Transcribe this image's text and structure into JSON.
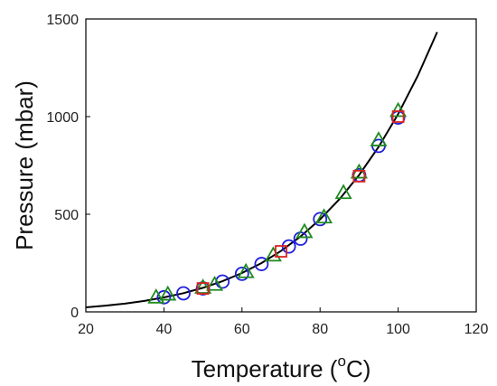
{
  "chart_data": {
    "type": "scatter",
    "title": "",
    "xlabel": "Temperature (",
    "xlabel_sup": "o",
    "xlabel_unit": "C)",
    "ylabel": "Pressure (mbar)",
    "xlim": [
      20,
      120
    ],
    "ylim": [
      0,
      1500
    ],
    "x_ticks": [
      20,
      40,
      60,
      80,
      100,
      120
    ],
    "y_ticks": [
      0,
      500,
      1000,
      1500
    ],
    "grid": false,
    "legend": "none",
    "curve": {
      "x": [
        20,
        25,
        30,
        35,
        40,
        45,
        50,
        55,
        60,
        65,
        70,
        75,
        80,
        85,
        90,
        95,
        100,
        105,
        110
      ],
      "y": [
        23,
        32,
        42,
        56,
        74,
        96,
        123,
        157,
        199,
        250,
        312,
        386,
        474,
        578,
        701,
        845,
        1013,
        1208,
        1433
      ],
      "color": "#000000"
    },
    "series": [
      {
        "marker": "circle",
        "color": "#1f1fdd",
        "x": [
          40,
          45,
          50,
          55,
          60,
          65,
          72,
          75,
          80,
          90,
          95,
          100
        ],
        "y": [
          75,
          95,
          120,
          155,
          195,
          245,
          335,
          375,
          475,
          700,
          850,
          995
        ]
      },
      {
        "marker": "triangle",
        "color": "#1e8a1e",
        "x": [
          38,
          41,
          50,
          53,
          61,
          68,
          76,
          81,
          86,
          90,
          95,
          100
        ],
        "y": [
          75,
          90,
          125,
          140,
          205,
          290,
          410,
          485,
          610,
          715,
          880,
          1030
        ]
      },
      {
        "marker": "square",
        "color": "#dd2222",
        "x": [
          50,
          70,
          90,
          100
        ],
        "y": [
          120,
          310,
          695,
          1000
        ]
      }
    ]
  }
}
